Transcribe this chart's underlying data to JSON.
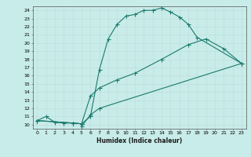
{
  "xlabel": "Humidex (Indice chaleur)",
  "bg_color": "#c8ece9",
  "grid_color": "#c0dedd",
  "line_color": "#1a7a6e",
  "xlim": [
    -0.5,
    23.5
  ],
  "ylim": [
    9.5,
    24.5
  ],
  "xticks": [
    0,
    1,
    2,
    3,
    4,
    5,
    6,
    7,
    8,
    9,
    10,
    11,
    12,
    13,
    14,
    15,
    16,
    17,
    18,
    19,
    20,
    21,
    22,
    23
  ],
  "yticks": [
    10,
    11,
    12,
    13,
    14,
    15,
    16,
    17,
    18,
    19,
    20,
    21,
    22,
    23,
    24
  ],
  "curve1_x": [
    0,
    1,
    2,
    3,
    4,
    5,
    6,
    7,
    8,
    9,
    10,
    11,
    12,
    13,
    14,
    15,
    16,
    17,
    18,
    23
  ],
  "curve1_y": [
    10.5,
    11.0,
    10.3,
    10.2,
    10.2,
    10.1,
    11.0,
    16.7,
    20.5,
    22.3,
    23.3,
    23.5,
    24.0,
    24.0,
    24.3,
    23.8,
    23.2,
    22.3,
    20.7,
    17.5
  ],
  "curve2_x": [
    0,
    4,
    5,
    6,
    7,
    9,
    11,
    14,
    17,
    19,
    21,
    23
  ],
  "curve2_y": [
    10.5,
    10.2,
    10.1,
    13.5,
    14.5,
    15.5,
    16.3,
    18.0,
    19.8,
    20.5,
    19.3,
    17.5
  ],
  "curve3_x": [
    0,
    4,
    5,
    5,
    6,
    7,
    23
  ],
  "curve3_y": [
    10.5,
    10.2,
    10.1,
    9.8,
    11.2,
    12.0,
    17.5
  ]
}
